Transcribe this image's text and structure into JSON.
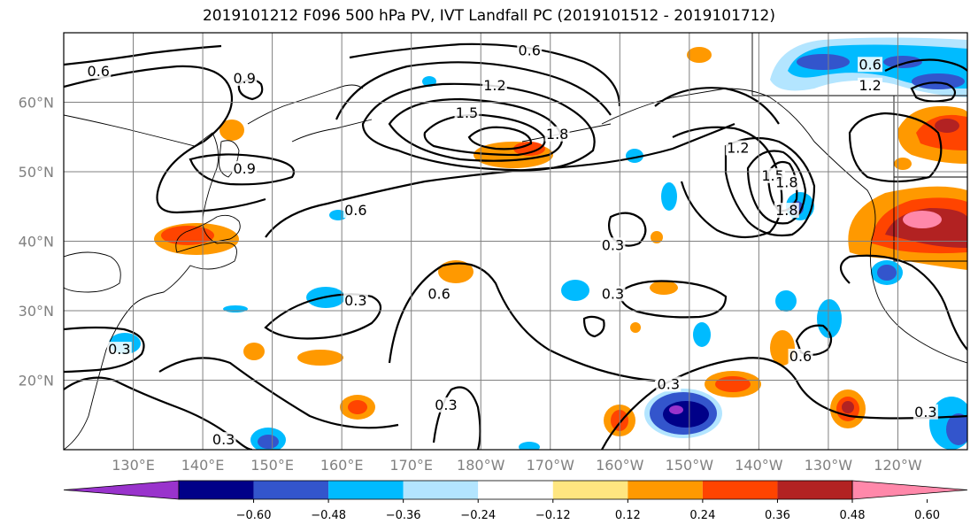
{
  "title": "2019101212 F096 500 hPa PV, IVT Landfall PC (2019101512 - 2019101712)",
  "map": {
    "lon_range": [
      120,
      250
    ],
    "lat_range": [
      10,
      70
    ],
    "lat_labels": [
      "20°N",
      "30°N",
      "40°N",
      "50°N",
      "60°N"
    ],
    "lon_labels": [
      "130°E",
      "140°E",
      "150°E",
      "160°E",
      "170°E",
      "180°W",
      "170°W",
      "160°W",
      "150°W",
      "140°W",
      "130°W",
      "120°W"
    ],
    "grid": true,
    "pv_contour_levels": [
      0.3,
      0.6,
      0.9,
      1.2,
      1.5,
      1.8
    ],
    "contour_labels": [
      {
        "text": "0.6",
        "lon": 125,
        "lat": 64
      },
      {
        "text": "0.9",
        "lon": 146,
        "lat": 63
      },
      {
        "text": "0.6",
        "lon": 187,
        "lat": 67
      },
      {
        "text": "0.6",
        "lon": 236,
        "lat": 65
      },
      {
        "text": "1.2",
        "lon": 182,
        "lat": 62
      },
      {
        "text": "1.5",
        "lon": 178,
        "lat": 58
      },
      {
        "text": "1.8",
        "lon": 191,
        "lat": 55
      },
      {
        "text": "0.9",
        "lon": 146,
        "lat": 50
      },
      {
        "text": "1.2",
        "lon": 236,
        "lat": 62
      },
      {
        "text": "1.2",
        "lon": 217,
        "lat": 53
      },
      {
        "text": "1.5",
        "lon": 222,
        "lat": 49
      },
      {
        "text": "1.8",
        "lon": 224,
        "lat": 48
      },
      {
        "text": "1.8",
        "lon": 224,
        "lat": 44
      },
      {
        "text": "0.6",
        "lon": 162,
        "lat": 44
      },
      {
        "text": "0.3",
        "lon": 199,
        "lat": 39
      },
      {
        "text": "0.3",
        "lon": 199,
        "lat": 32
      },
      {
        "text": "0.3",
        "lon": 162,
        "lat": 31
      },
      {
        "text": "0.6",
        "lon": 174,
        "lat": 32
      },
      {
        "text": "0.3",
        "lon": 128,
        "lat": 24
      },
      {
        "text": "0.6",
        "lon": 226,
        "lat": 23
      },
      {
        "text": "0.3",
        "lon": 207,
        "lat": 19
      },
      {
        "text": "0.3",
        "lon": 175,
        "lat": 16
      },
      {
        "text": "0.3",
        "lon": 244,
        "lat": 15
      },
      {
        "text": "0.3",
        "lon": 143,
        "lat": 11
      }
    ],
    "colors": {
      "continent_line": "#000000",
      "grid_line": "#808080",
      "contour_line": "#000000"
    }
  },
  "colorbar": {
    "ticks": [
      "−0.60",
      "−0.48",
      "−0.36",
      "−0.24",
      "−0.12",
      "0.12",
      "0.24",
      "0.36",
      "0.48",
      "0.60"
    ],
    "colors": [
      "#9933cc",
      "#000088",
      "#3355cc",
      "#00bbff",
      "#b3e5ff",
      "#ffffff",
      "#ffe680",
      "#ff9900",
      "#ff4400",
      "#b22222",
      "#ff88aa"
    ]
  }
}
